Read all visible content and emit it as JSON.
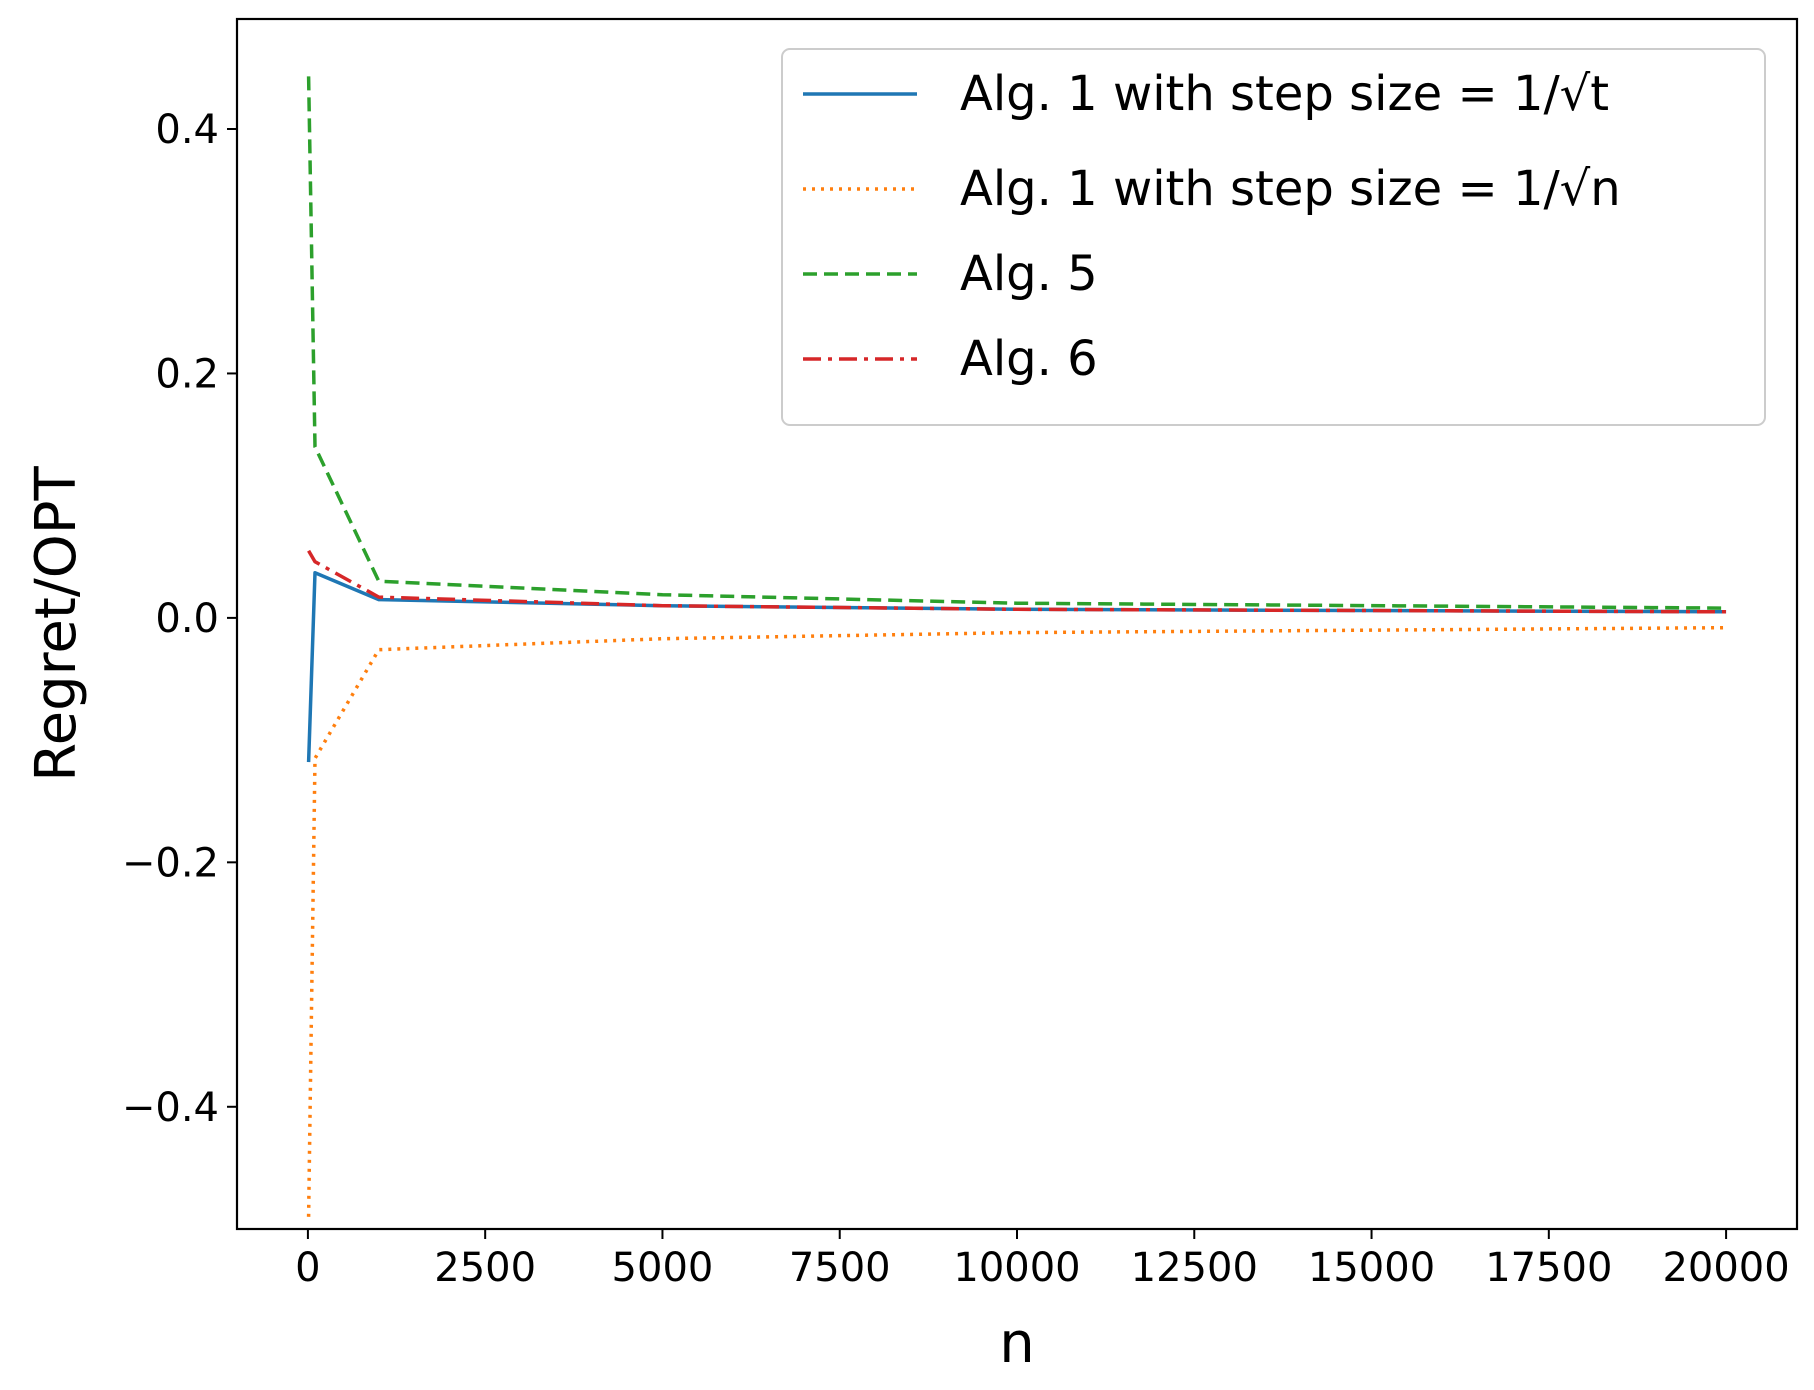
{
  "chart_data": {
    "type": "line",
    "xlabel": "n",
    "ylabel": "Regret/OPT",
    "xlim": [
      -1000,
      21000
    ],
    "ylim": [
      -0.5,
      0.49
    ],
    "xticks": [
      0,
      2500,
      5000,
      7500,
      10000,
      12500,
      15000,
      17500,
      20000
    ],
    "xtick_labels": [
      "0",
      "2500",
      "5000",
      "7500",
      "10000",
      "12500",
      "15000",
      "17500",
      "20000"
    ],
    "yticks": [
      -0.4,
      -0.2,
      0.0,
      0.2,
      0.4
    ],
    "ytick_labels": [
      "−0.4",
      "−0.2",
      "0.0",
      "0.2",
      "0.4"
    ],
    "grid": false,
    "legend_position": "top-right",
    "series": [
      {
        "name": "Alg. 1 with step size = 1/√t",
        "color": "#1f77b4",
        "style": "solid",
        "x": [
          10,
          100,
          1000,
          5000,
          10000,
          20000
        ],
        "y": [
          -0.118,
          0.037,
          0.015,
          0.01,
          0.007,
          0.005
        ]
      },
      {
        "name": "Alg. 1 with step size = 1/√n",
        "color": "#ff7f0e",
        "style": "dotted",
        "x": [
          10,
          100,
          1000,
          5000,
          10000,
          20000
        ],
        "y": [
          -0.49,
          -0.115,
          -0.026,
          -0.017,
          -0.012,
          -0.008
        ]
      },
      {
        "name": "Alg. 5",
        "color": "#2ca02c",
        "style": "dashed",
        "x": [
          10,
          100,
          1000,
          5000,
          10000,
          20000
        ],
        "y": [
          0.443,
          0.14,
          0.03,
          0.019,
          0.012,
          0.008
        ]
      },
      {
        "name": "Alg. 6",
        "color": "#d62728",
        "style": "dashdot",
        "x": [
          10,
          100,
          1000,
          5000,
          10000,
          20000
        ],
        "y": [
          0.055,
          0.046,
          0.017,
          0.01,
          0.007,
          0.005
        ]
      }
    ]
  }
}
